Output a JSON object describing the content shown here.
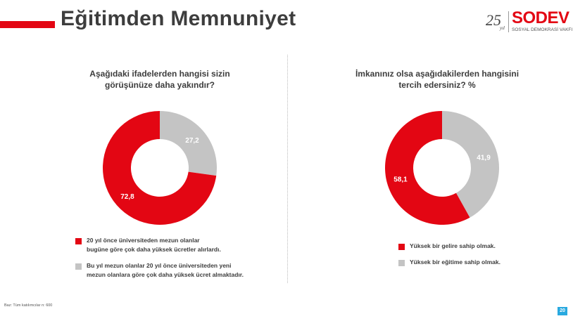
{
  "header": {
    "title": "Eğitimden Memnuniyet",
    "logo_number": "25",
    "logo_year_label": "yıl",
    "logo_word": "SODEV",
    "logo_subtitle": "SOSYAL DEMOKRASİ VAKFI"
  },
  "colors": {
    "accent": "#e30613",
    "secondary": "#c4c4c4",
    "page_badge": "#29a9e0"
  },
  "chart_data": [
    {
      "type": "pie",
      "donut": true,
      "title_lines": [
        "Aşağıdaki ifadelerden hangisi sizin",
        "görüşünüze daha yakındır?"
      ],
      "series": [
        {
          "name": "20 yıl önce üniversiteden mezun olanlar bugüne göre çok daha yüksek ücretler alırlardı.",
          "value": 72.8,
          "label": "72,8",
          "color": "#e30613"
        },
        {
          "name": "Bu yıl mezun olanlar 20 yıl önce üniversiteden yeni mezun olanlara göre çok daha yüksek ücret almaktadır.",
          "value": 27.2,
          "label": "27,2",
          "color": "#c4c4c4"
        }
      ],
      "legend": [
        {
          "lines": [
            "20 yıl önce üniversiteden mezun olanlar",
            "bugüne göre çok daha yüksek ücretler alırlardı."
          ],
          "color": "#e30613"
        },
        {
          "lines": [
            "Bu yıl mezun olanlar 20 yıl önce üniversiteden yeni",
            "mezun olanlara göre çok daha yüksek ücret almaktadır."
          ],
          "color": "#c4c4c4"
        }
      ]
    },
    {
      "type": "pie",
      "donut": true,
      "title_lines": [
        "İmkanınız olsa aşağıdakilerden hangisini",
        "tercih edersiniz? %"
      ],
      "series": [
        {
          "name": "Yüksek bir gelire sahip olmak.",
          "value": 58.1,
          "label": "58,1",
          "color": "#e30613"
        },
        {
          "name": "Yüksek bir eğitime sahip olmak.",
          "value": 41.9,
          "label": "41,9",
          "color": "#c4c4c4"
        }
      ],
      "legend": [
        {
          "lines": [
            "Yüksek bir gelire sahip olmak."
          ],
          "color": "#e30613"
        },
        {
          "lines": [
            "Yüksek bir eğitime sahip olmak."
          ],
          "color": "#c4c4c4"
        }
      ]
    }
  ],
  "footer": {
    "base_note": "Baz: Tüm katılımcılar n: 600",
    "page_number": "20"
  }
}
